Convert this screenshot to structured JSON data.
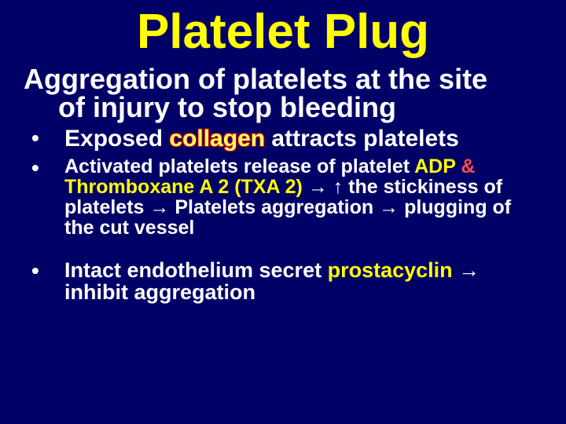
{
  "colors": {
    "background": "#000066",
    "title": "#ffff00",
    "body_text": "#ffffff",
    "highlight_yellow": "#ffff00",
    "highlight_red": "#ff4d4d",
    "outline_red": "#cc0000"
  },
  "typography": {
    "font_family": "Comic Sans MS",
    "title_fontsize_pt": 46,
    "subtitle_fontsize_pt": 27,
    "bullet1_fontsize_pt": 23,
    "bullet2_fontsize_pt": 19,
    "bullet3_fontsize_pt": 20,
    "weight": "bold"
  },
  "title": "Platelet Plug",
  "subtitle_line1": "Aggregation of platelets at the site",
  "subtitle_line2": "of injury to stop bleeding",
  "bullets": {
    "b1": {
      "prefix": "Exposed ",
      "highlight": "collagen",
      "suffix": " attracts platelets"
    },
    "b2": {
      "t1": "Activated platelets release of platelet ",
      "adp": "ADP",
      "amp": " & ",
      "txa": "Thromboxane A 2 (TXA 2)",
      "arr1": " → ",
      "up": "↑",
      "t2": " the stickiness of platelets ",
      "arr2": "→",
      "t3": " Platelets aggregation ",
      "arr3": "→",
      "t4": " plugging of the cut vessel"
    },
    "b3": {
      "t1": "Intact endothelium secret ",
      "pc": "prostacyclin",
      "arr": " → ",
      "t2": "inhibit aggregation"
    }
  }
}
